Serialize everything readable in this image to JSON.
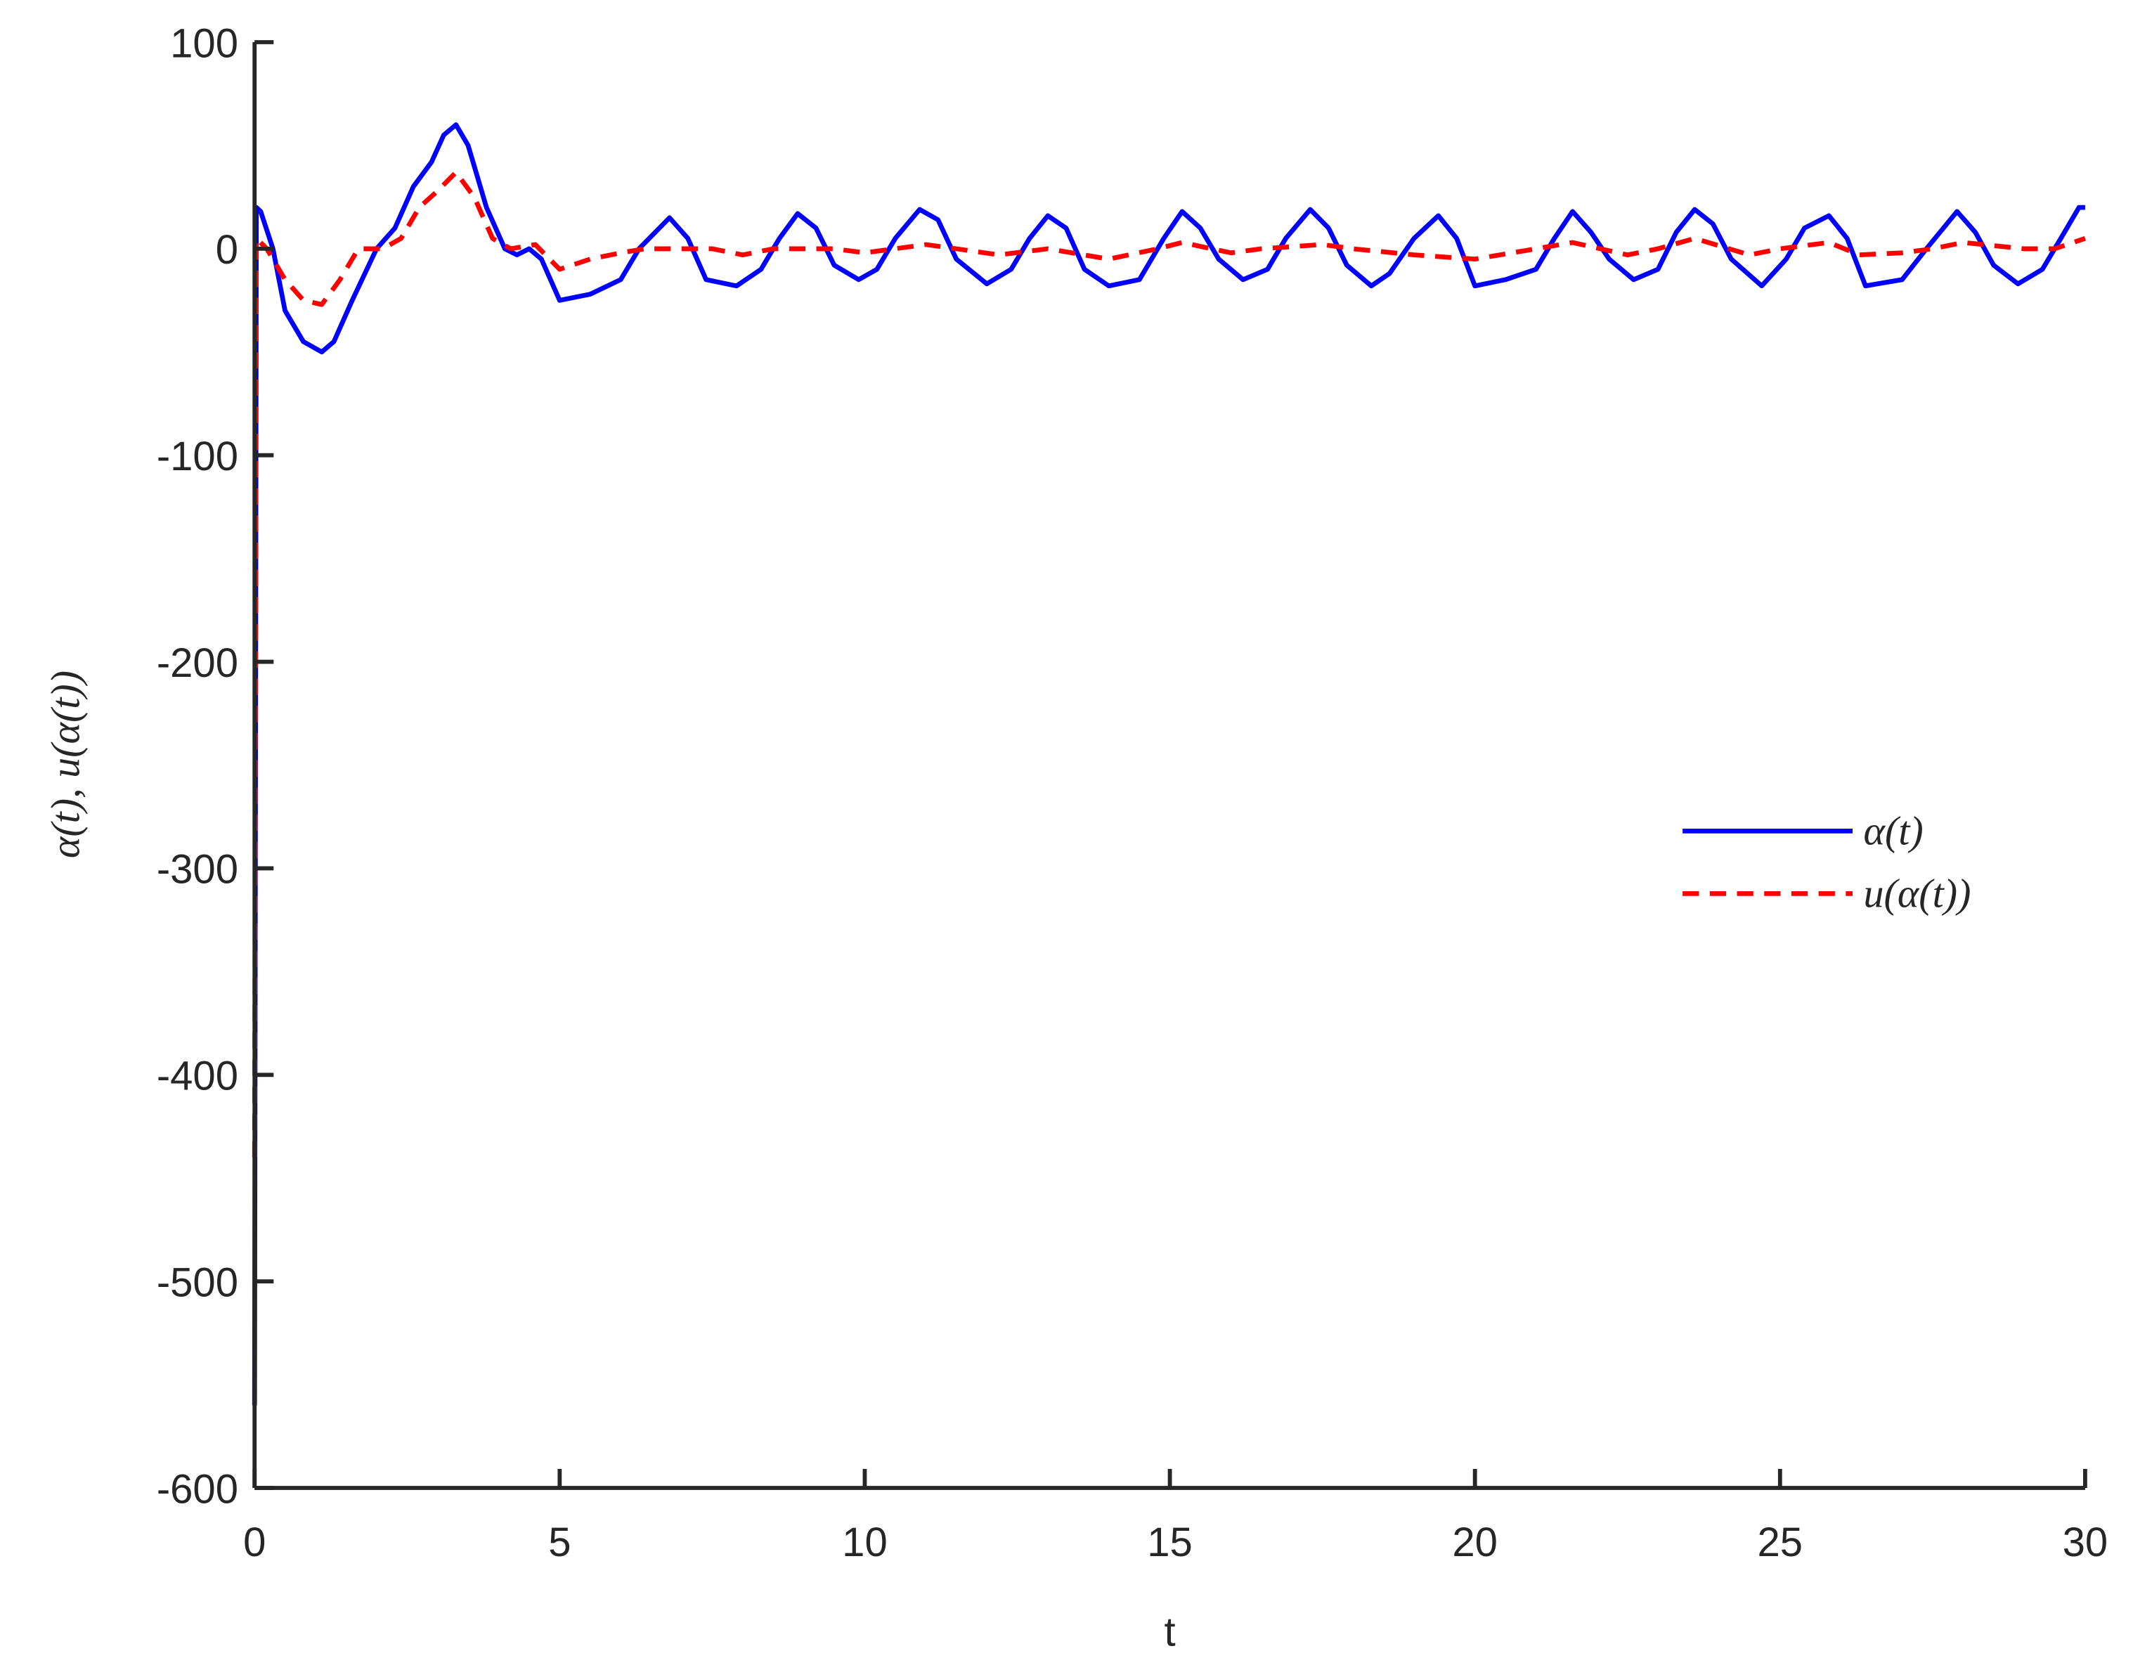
{
  "chart_data": {
    "type": "line",
    "xlabel": "t",
    "ylabel": "α(t), u(α(t))",
    "xlim": [
      0,
      30
    ],
    "xticks": [
      0,
      5,
      10,
      15,
      20,
      25,
      30
    ],
    "ylim": [
      -600,
      100
    ],
    "yticks": [
      -600,
      -500,
      -400,
      -300,
      -200,
      -100,
      0,
      100
    ],
    "legend": "right",
    "series": [
      {
        "name": "α(t)",
        "color": "#0000ff",
        "dash": false,
        "x": [
          0,
          0.03,
          0.1,
          0.3,
          0.5,
          0.8,
          1.1,
          1.3,
          1.6,
          2.0,
          2.3,
          2.6,
          2.9,
          3.1,
          3.3,
          3.5,
          3.8,
          4.1,
          4.3,
          4.5,
          4.7,
          5.0,
          5.5,
          6.0,
          6.3,
          6.8,
          7.1,
          7.4,
          7.9,
          8.3,
          8.6,
          8.9,
          9.2,
          9.5,
          9.9,
          10.2,
          10.5,
          10.9,
          11.2,
          11.5,
          12.0,
          12.4,
          12.7,
          13.0,
          13.3,
          13.6,
          14.0,
          14.5,
          14.9,
          15.2,
          15.5,
          15.8,
          16.2,
          16.6,
          16.9,
          17.3,
          17.6,
          17.9,
          18.3,
          18.6,
          19.0,
          19.4,
          19.7,
          20.0,
          20.5,
          21.0,
          21.3,
          21.6,
          21.9,
          22.2,
          22.6,
          23.0,
          23.3,
          23.6,
          23.9,
          24.2,
          24.7,
          25.1,
          25.4,
          25.8,
          26.1,
          26.4,
          27.0,
          27.4,
          27.9,
          28.2,
          28.5,
          28.9,
          29.3,
          29.6,
          29.9,
          30
        ],
        "values": [
          -560,
          20,
          18,
          0,
          -30,
          -45,
          -50,
          -45,
          -25,
          0,
          10,
          30,
          42,
          55,
          60,
          50,
          20,
          0,
          -3,
          0,
          -5,
          -25,
          -22,
          -15,
          0,
          15,
          5,
          -15,
          -18,
          -10,
          5,
          17,
          10,
          -8,
          -15,
          -10,
          5,
          19,
          14,
          -5,
          -17,
          -10,
          5,
          16,
          10,
          -10,
          -18,
          -15,
          5,
          18,
          10,
          -5,
          -15,
          -10,
          5,
          19,
          10,
          -8,
          -18,
          -12,
          5,
          16,
          5,
          -18,
          -15,
          -10,
          5,
          18,
          8,
          -5,
          -15,
          -10,
          8,
          19,
          12,
          -5,
          -18,
          -5,
          10,
          16,
          5,
          -18,
          -15,
          0,
          18,
          8,
          -8,
          -17,
          -10,
          5,
          20,
          20
        ]
      },
      {
        "name": "u(α(t))",
        "color": "#ff0000",
        "dash": true,
        "x": [
          0,
          0.03,
          0.2,
          0.5,
          0.8,
          1.1,
          1.4,
          1.7,
          2.1,
          2.4,
          2.7,
          3.0,
          3.3,
          3.6,
          3.9,
          4.2,
          4.6,
          5.0,
          5.5,
          6.0,
          6.4,
          7.5,
          8.0,
          8.5,
          9.5,
          10.0,
          11.0,
          11.5,
          12.2,
          13.0,
          14.0,
          14.8,
          15.2,
          16.0,
          16.5,
          17.5,
          18.0,
          19.0,
          20.0,
          21.0,
          21.6,
          22.5,
          23.0,
          23.6,
          24.5,
          25.0,
          25.8,
          26.3,
          27.0,
          27.5,
          28.0,
          29.0,
          29.5,
          30
        ],
        "values": [
          -440,
          5,
          0,
          -15,
          -25,
          -27,
          -15,
          0,
          0,
          5,
          20,
          28,
          37,
          25,
          5,
          0,
          2,
          -10,
          -5,
          -2,
          0,
          0,
          -3,
          0,
          0,
          -2,
          2,
          0,
          -3,
          0,
          -5,
          0,
          3,
          -2,
          0,
          2,
          0,
          -3,
          -5,
          0,
          3,
          -3,
          0,
          5,
          -3,
          0,
          3,
          -3,
          -2,
          0,
          3,
          0,
          0,
          5
        ]
      }
    ]
  }
}
